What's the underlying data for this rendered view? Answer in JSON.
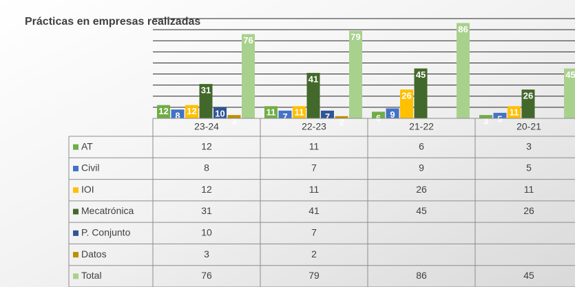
{
  "chart_data": {
    "type": "bar",
    "title": "Prácticas en empresas realizadas",
    "categories": [
      "23-24",
      "22-23",
      "21-22",
      "20-21"
    ],
    "series": [
      {
        "name": "AT",
        "color": "#70ad47",
        "values": [
          12,
          11,
          6,
          3
        ]
      },
      {
        "name": "Civil",
        "color": "#4472c4",
        "values": [
          8,
          7,
          9,
          5
        ]
      },
      {
        "name": "IOI",
        "color": "#ffc000",
        "values": [
          12,
          11,
          26,
          11
        ]
      },
      {
        "name": "Mecatrónica",
        "color": "#43682b",
        "values": [
          31,
          41,
          45,
          26
        ]
      },
      {
        "name": "P. Conjunto",
        "color": "#2f5597",
        "values": [
          10,
          7,
          null,
          null
        ]
      },
      {
        "name": "Datos",
        "color": "#bf8f00",
        "values": [
          3,
          2,
          null,
          null
        ]
      },
      {
        "name": "Total",
        "color": "#a9d18e",
        "values": [
          76,
          79,
          86,
          45
        ]
      }
    ],
    "ylim": [
      0,
      90
    ],
    "yticks": [
      0,
      10,
      20,
      30,
      40,
      50,
      60,
      70,
      80,
      90
    ],
    "grid": true
  }
}
